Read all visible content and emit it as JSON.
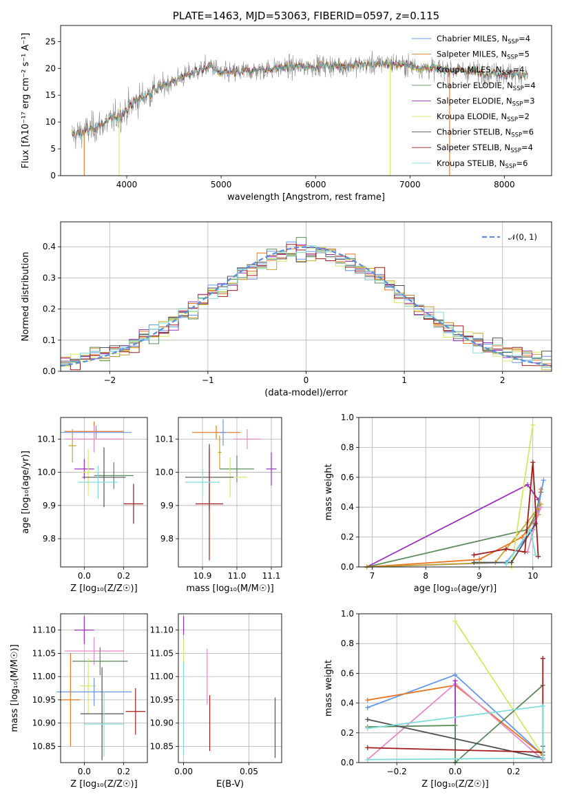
{
  "palette": {
    "chabrier_miles": "#6495ed",
    "salpeter_miles": "#e8741e",
    "kroupa_miles": "#c8a028",
    "chabrier_elodie": "#5a8a5a",
    "salpeter_elodie": "#9b30c0",
    "kroupa_elodie": "#d4e860",
    "chabrier_stelib": "#505050",
    "salpeter_stelib": "#a01a1a",
    "kroupa_stelib": "#80dcdc",
    "pink": "#e888c8",
    "normal_curve": "#5b8fdc"
  },
  "chart_data": [
    {
      "id": "spectrum",
      "type": "line",
      "title": "PLATE=1463, MJD=53063, FIBERID=0597, z=0.115",
      "xlabel": "wavelength [Angstrom, rest frame]",
      "ylabel": "Flux [fλ10⁻¹⁷ erg cm⁻² s⁻¹ A⁻¹]",
      "xlim": [
        3300,
        8500
      ],
      "ylim": [
        0,
        28
      ],
      "xticks": [
        "4000",
        "5000",
        "6000",
        "7000",
        "8000"
      ],
      "xtick_values": [
        4000,
        5000,
        6000,
        7000,
        8000
      ],
      "yticks": [
        "0",
        "5",
        "10",
        "15",
        "20",
        "25"
      ],
      "ytick_values": [
        0,
        5,
        10,
        15,
        20,
        25
      ],
      "grid": false,
      "legend_position": "upper-right",
      "legend": [
        {
          "label": "Chabrier MILES, N",
          "sub": "SSP",
          "suffix": "=4",
          "color": "#6495ed"
        },
        {
          "label": "Salpeter MILES, N",
          "sub": "SSP",
          "suffix": "=5",
          "color": "#e8741e"
        },
        {
          "label": "Kroupa MILES, N",
          "sub": "SSP",
          "suffix": "=4",
          "color": "#c8a028"
        },
        {
          "label": "Chabrier ELODIE, N",
          "sub": "SSP",
          "suffix": "=4",
          "color": "#5a8a5a"
        },
        {
          "label": "Salpeter ELODIE, N",
          "sub": "SSP",
          "suffix": "=3",
          "color": "#9b30c0"
        },
        {
          "label": "Kroupa ELODIE, N",
          "sub": "SSP",
          "suffix": "=2",
          "color": "#d4e860"
        },
        {
          "label": "Chabrier STELIB, N",
          "sub": "SSP",
          "suffix": "=6",
          "color": "#505050"
        },
        {
          "label": "Salpeter STELIB, N",
          "sub": "SSP",
          "suffix": "=4",
          "color": "#a01a1a"
        },
        {
          "label": "Kroupa STELIB, N",
          "sub": "SSP",
          "suffix": "=6",
          "color": "#80dcdc"
        }
      ],
      "continuum": [
        [
          3420,
          7.5
        ],
        [
          3600,
          8.5
        ],
        [
          3800,
          10
        ],
        [
          3950,
          11.5
        ],
        [
          4100,
          14
        ],
        [
          4300,
          16
        ],
        [
          4600,
          18.5
        ],
        [
          4900,
          20.5
        ],
        [
          5000,
          19
        ],
        [
          5300,
          19.5
        ],
        [
          5600,
          20
        ],
        [
          6000,
          20.5
        ],
        [
          6400,
          20.5
        ],
        [
          6800,
          21
        ],
        [
          7200,
          20
        ],
        [
          7600,
          19.5
        ],
        [
          8000,
          19
        ],
        [
          8250,
          19
        ]
      ],
      "cutoffs": [
        {
          "x": 3550,
          "color": "#e8741e"
        },
        {
          "x": 3920,
          "color": "#d4e860"
        },
        {
          "x": 6790,
          "color": "#d4e860"
        },
        {
          "x": 7420,
          "color": "#e8741e"
        }
      ]
    },
    {
      "id": "residuals",
      "type": "histogram",
      "xlabel": "(data-model)/error",
      "ylabel": "Normed distribution",
      "xlim": [
        -2.5,
        2.5
      ],
      "ylim": [
        0,
        0.48
      ],
      "xticks": [
        "−2",
        "−1",
        "0",
        "1",
        "2"
      ],
      "xtick_values": [
        -2,
        -1,
        0,
        1,
        2
      ],
      "yticks": [
        "0.0",
        "0.1",
        "0.2",
        "0.3",
        "0.4"
      ],
      "ytick_values": [
        0,
        0.1,
        0.2,
        0.3,
        0.4
      ],
      "grid": true,
      "bins": 50,
      "legend_position": "upper-right",
      "legend": [
        {
          "label": "𝒩(0, 1)",
          "color": "#5b8fdc"
        }
      ]
    },
    {
      "id": "age_vs_Z",
      "type": "errorbar",
      "xlabel": "Z [log₁₀(Z/Z☉)]",
      "ylabel": "age  [log₁₀(age/yr)]",
      "xlim": [
        -0.12,
        0.32
      ],
      "ylim": [
        9.715,
        10.165
      ],
      "xticks": [
        "0.0",
        "0.2"
      ],
      "xtick_values": [
        0,
        0.2
      ],
      "yticks": [
        "9.8",
        "9.9",
        "10.0",
        "10.1"
      ],
      "ytick_values": [
        9.8,
        9.9,
        10.0,
        10.1
      ],
      "grid": true,
      "points": [
        {
          "x": 0.06,
          "y": 10.12,
          "xerr": 0.18,
          "yerr": 0.02,
          "color": "#6495ed"
        },
        {
          "x": 0.05,
          "y": 10.123,
          "xerr": 0.15,
          "yerr": 0.03,
          "color": "#e8741e"
        },
        {
          "x": -0.06,
          "y": 10.08,
          "xerr": 0.02,
          "yerr": 0.05,
          "color": "#c8a028"
        },
        {
          "x": 0.05,
          "y": 10.1,
          "xerr": 0.15,
          "yerr": 0.04,
          "color": "#e888c8"
        },
        {
          "x": 0.15,
          "y": 9.99,
          "xerr": 0.1,
          "yerr": 0.04,
          "color": "#5a8a5a"
        },
        {
          "x": 0.0,
          "y": 10.01,
          "xerr": 0.05,
          "yerr": 0.03,
          "color": "#9b30c0"
        },
        {
          "x": 0.02,
          "y": 10.0,
          "xerr": 0.03,
          "yerr": 0.07,
          "color": "#d4e860"
        },
        {
          "x": 0.1,
          "y": 9.985,
          "xerr": 0.11,
          "yerr": 0.09,
          "color": "#505050"
        },
        {
          "x": 0.25,
          "y": 9.905,
          "xerr": 0.05,
          "yerr": 0.06,
          "color": "#a01a1a"
        },
        {
          "x": 0.07,
          "y": 9.97,
          "xerr": 0.1,
          "yerr": 0.05,
          "color": "#80dcdc"
        }
      ]
    },
    {
      "id": "age_vs_mass",
      "type": "errorbar",
      "xlabel": "mass [log₁₀(M/M☉)]",
      "ylabel": "",
      "xlim": [
        10.83,
        11.13
      ],
      "ylim": [
        9.715,
        10.165
      ],
      "xticks": [
        "10.9",
        "11.0",
        "11.1"
      ],
      "xtick_values": [
        10.9,
        11.0,
        11.1
      ],
      "yticks": [
        "9.8",
        "9.9",
        "10.0",
        "10.1"
      ],
      "ytick_values": [
        9.8,
        9.9,
        10.0,
        10.1
      ],
      "grid": true,
      "points": [
        {
          "x": 10.94,
          "y": 10.12,
          "xerr": 0.07,
          "yerr": 0.02,
          "color": "#e8741e"
        },
        {
          "x": 10.96,
          "y": 10.12,
          "xerr": 0.01,
          "yerr": 0.04,
          "color": "#6495ed"
        },
        {
          "x": 11.03,
          "y": 10.1,
          "xerr": 0.04,
          "yerr": 0.03,
          "color": "#e888c8"
        },
        {
          "x": 10.95,
          "y": 10.06,
          "xerr": 0.005,
          "yerr": 0.05,
          "color": "#c8a028"
        },
        {
          "x": 11.0,
          "y": 10.01,
          "xerr": 0.05,
          "yerr": 0.04,
          "color": "#5a8a5a"
        },
        {
          "x": 11.1,
          "y": 10.01,
          "xerr": 0.015,
          "yerr": 0.05,
          "color": "#9b30c0"
        },
        {
          "x": 10.98,
          "y": 9.985,
          "xerr": 0.05,
          "yerr": 0.06,
          "color": "#d4e860"
        },
        {
          "x": 10.92,
          "y": 9.985,
          "xerr": 0.07,
          "yerr": 0.1,
          "color": "#505050"
        },
        {
          "x": 10.92,
          "y": 9.905,
          "xerr": 0.04,
          "yerr": 0.17,
          "color": "#a01a1a"
        },
        {
          "x": 10.9,
          "y": 9.97,
          "xerr": 0.05,
          "yerr": 0.04,
          "color": "#80dcdc"
        }
      ]
    },
    {
      "id": "weight_vs_age",
      "type": "line",
      "xlabel": "age  [log₁₀(age/yr)]",
      "ylabel": "mass weight",
      "xlim": [
        6.75,
        10.35
      ],
      "ylim": [
        0,
        1.0
      ],
      "xticks": [
        "7",
        "8",
        "9",
        "10"
      ],
      "xtick_values": [
        7,
        8,
        9,
        10
      ],
      "yticks": [
        "0.0",
        "0.2",
        "0.4",
        "0.6",
        "0.8",
        "1.0"
      ],
      "ytick_values": [
        0,
        0.2,
        0.4,
        0.6,
        0.8,
        1.0
      ],
      "grid": true,
      "series": [
        {
          "color": "#9b30c0",
          "x": [
            6.9,
            9.9,
            10.1
          ],
          "y": [
            0.0,
            0.55,
            0.45
          ]
        },
        {
          "color": "#5a8a5a",
          "x": [
            6.9,
            9.9,
            10.05,
            10.15
          ],
          "y": [
            0.0,
            0.25,
            0.35,
            0.5
          ]
        },
        {
          "color": "#e8741e",
          "x": [
            6.9,
            9.0,
            9.8,
            10.1,
            10.15
          ],
          "y": [
            0.0,
            0.05,
            0.2,
            0.35,
            0.52
          ]
        },
        {
          "color": "#6495ed",
          "x": [
            6.9,
            9.5,
            10.0,
            10.1,
            10.2
          ],
          "y": [
            0.0,
            0.03,
            0.25,
            0.4,
            0.58
          ]
        },
        {
          "color": "#c8a028",
          "x": [
            6.9,
            9.3,
            9.9,
            10.15
          ],
          "y": [
            0.0,
            0.03,
            0.3,
            0.42
          ]
        },
        {
          "color": "#e888c8",
          "x": [
            9.9,
            10.05,
            10.15
          ],
          "y": [
            0.1,
            0.3,
            0.4
          ]
        },
        {
          "color": "#d4e860",
          "x": [
            9.6,
            10.0
          ],
          "y": [
            0.0,
            0.95
          ]
        },
        {
          "color": "#505050",
          "x": [
            8.9,
            9.6,
            10.05
          ],
          "y": [
            0.03,
            0.03,
            0.29
          ]
        },
        {
          "color": "#a01a1a",
          "x": [
            8.9,
            9.5,
            9.85,
            10.0,
            10.1
          ],
          "y": [
            0.08,
            0.12,
            0.1,
            0.7,
            0.07
          ]
        },
        {
          "color": "#80dcdc",
          "x": [
            9.5,
            9.95,
            10.05
          ],
          "y": [
            0.02,
            0.25,
            0.08
          ]
        }
      ]
    },
    {
      "id": "mass_vs_Z",
      "type": "errorbar",
      "xlabel": "Z [log₁₀(Z/Z☉)]",
      "ylabel": "mass [log₁₀(M/M☉)]",
      "xlim": [
        -0.12,
        0.32
      ],
      "ylim": [
        10.815,
        11.135
      ],
      "xticks": [
        "0.0",
        "0.2"
      ],
      "xtick_values": [
        0,
        0.2
      ],
      "yticks": [
        "10.85",
        "10.90",
        "10.95",
        "11.00",
        "11.05",
        "11.10"
      ],
      "ytick_values": [
        10.85,
        10.9,
        10.95,
        11.0,
        11.05,
        11.1
      ],
      "grid": true,
      "points": [
        {
          "x": 0.0,
          "y": 11.1,
          "xerr": 0.05,
          "yerr": 0.03,
          "color": "#9b30c0"
        },
        {
          "x": 0.05,
          "y": 11.055,
          "xerr": 0.15,
          "yerr": 0.03,
          "color": "#e888c8"
        },
        {
          "x": 0.08,
          "y": 11.033,
          "xerr": 0.14,
          "yerr": 0.03,
          "color": "#5a8a5a"
        },
        {
          "x": 0.02,
          "y": 10.98,
          "xerr": 0.04,
          "yerr": 0.06,
          "color": "#d4e860"
        },
        {
          "x": 0.05,
          "y": 10.967,
          "xerr": 0.19,
          "yerr": 0.03,
          "color": "#6495ed"
        },
        {
          "x": -0.07,
          "y": 10.95,
          "xerr": 0.05,
          "yerr": 0.1,
          "color": "#e8741e"
        },
        {
          "x": 0.09,
          "y": 10.92,
          "xerr": 0.11,
          "yerr": 0.1,
          "color": "#505050"
        },
        {
          "x": 0.26,
          "y": 10.925,
          "xerr": 0.05,
          "yerr": 0.05,
          "color": "#a01a1a"
        },
        {
          "x": 0.1,
          "y": 10.898,
          "xerr": 0.1,
          "yerr": 0.07,
          "color": "#80dcdc"
        }
      ]
    },
    {
      "id": "mass_vs_ebv",
      "type": "errorbar",
      "xlabel": "E(B-V)",
      "ylabel": "",
      "xlim": [
        -0.004,
        0.075
      ],
      "ylim": [
        10.815,
        11.135
      ],
      "xticks": [
        "0.00",
        "0.05"
      ],
      "xtick_values": [
        0,
        0.05
      ],
      "yticks": [
        "10.85",
        "10.90",
        "10.95",
        "11.00",
        "11.05",
        "11.10"
      ],
      "ytick_values": [
        10.85,
        10.9,
        10.95,
        11.0,
        11.05,
        11.1
      ],
      "grid": true,
      "points": [
        {
          "x": 0.0,
          "y": 11.11,
          "xerr": 0,
          "yerr": 0.02,
          "color": "#9b30c0"
        },
        {
          "x": 0.0,
          "y": 11.0,
          "xerr": 0,
          "yerr": 0.08,
          "color": "#d4e860"
        },
        {
          "x": 0.0,
          "y": 10.93,
          "xerr": 0,
          "yerr": 0.1,
          "color": "#80dcdc"
        },
        {
          "x": 0.018,
          "y": 11.0,
          "xerr": 0,
          "yerr": 0.06,
          "color": "#e888c8"
        },
        {
          "x": 0.02,
          "y": 10.9,
          "xerr": 0,
          "yerr": 0.06,
          "color": "#a01a1a"
        },
        {
          "x": 0.07,
          "y": 10.89,
          "xerr": 0,
          "yerr": 0.065,
          "color": "#505050"
        }
      ]
    },
    {
      "id": "weight_vs_Z",
      "type": "line",
      "xlabel": "Z [log₁₀(Z/Z☉)]",
      "ylabel": "mass weight",
      "xlim": [
        -0.33,
        0.33
      ],
      "ylim": [
        0,
        1.0
      ],
      "xticks": [
        "−0.2",
        "0.0",
        "0.2"
      ],
      "xtick_values": [
        -0.2,
        0,
        0.2
      ],
      "yticks": [
        "0.0",
        "0.2",
        "0.4",
        "0.6",
        "0.8",
        "1.0"
      ],
      "ytick_values": [
        0,
        0.2,
        0.4,
        0.6,
        0.8,
        1.0
      ],
      "grid": true,
      "series": [
        {
          "color": "#d4e860",
          "x": [
            0.0,
            0.3
          ],
          "y": [
            0.95,
            0.05
          ]
        },
        {
          "color": "#6495ed",
          "x": [
            -0.3,
            0.0,
            0.3
          ],
          "y": [
            0.37,
            0.59,
            0.05
          ]
        },
        {
          "color": "#e8741e",
          "x": [
            -0.3,
            0.0,
            0.3
          ],
          "y": [
            0.42,
            0.52,
            0.05
          ]
        },
        {
          "color": "#e888c8",
          "x": [
            -0.3,
            0.0,
            0.3
          ],
          "y": [
            0.02,
            0.53,
            0.02
          ]
        },
        {
          "color": "#9b30c0",
          "x": [
            0.0,
            0.0
          ],
          "y": [
            0.55,
            0.0
          ]
        },
        {
          "color": "#5a8a5a",
          "x": [
            -0.3,
            0.0,
            0.0,
            0.3
          ],
          "y": [
            0.24,
            0.25,
            0.0,
            0.52
          ]
        },
        {
          "color": "#505050",
          "x": [
            -0.3,
            0.3,
            0.3
          ],
          "y": [
            0.29,
            0.03,
            0.11
          ]
        },
        {
          "color": "#a01a1a",
          "x": [
            -0.3,
            0.3,
            0.3
          ],
          "y": [
            0.1,
            0.07,
            0.7
          ]
        },
        {
          "color": "#80dcdc",
          "x": [
            -0.3,
            0.3,
            0.3,
            -0.3
          ],
          "y": [
            0.23,
            0.38,
            0.03,
            0.02
          ]
        }
      ]
    }
  ]
}
